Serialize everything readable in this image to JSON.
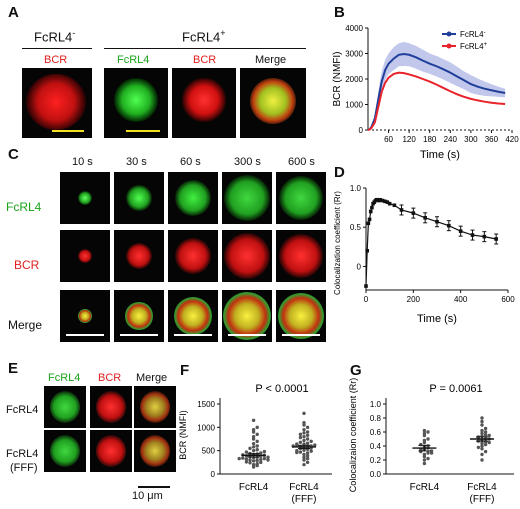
{
  "panels": {
    "A": {
      "letter": "A",
      "group_neg": "FcRL4",
      "group_neg_sup": "-",
      "group_pos": "FcRL4",
      "group_pos_sup": "+",
      "col_labels": [
        "BCR",
        "FcRL4",
        "BCR",
        "Merge"
      ]
    },
    "B": {
      "letter": "B"
    },
    "C": {
      "letter": "C",
      "times": [
        "10 s",
        "30 s",
        "60 s",
        "300 s",
        "600 s"
      ],
      "row_labels": [
        "FcRL4",
        "BCR",
        "Merge"
      ]
    },
    "D": {
      "letter": "D"
    },
    "E": {
      "letter": "E",
      "col_labels": [
        "FcRL4",
        "BCR",
        "Merge"
      ],
      "row_labels": [
        "FcRL4",
        "FcRL4",
        "(FFF)"
      ],
      "scalebar": "10 μm"
    },
    "F": {
      "letter": "F"
    },
    "G": {
      "letter": "G"
    }
  },
  "chart_data": [
    {
      "panel": "B",
      "type": "line",
      "xlabel": "Time (s)",
      "ylabel": "BCR (NMFI)",
      "xlim": [
        0,
        420
      ],
      "ylim": [
        0,
        4000
      ],
      "xticks": [
        60,
        120,
        180,
        240,
        300,
        360,
        420
      ],
      "yticks": [
        0,
        1000,
        2000,
        3000,
        4000
      ],
      "legend": "top-right",
      "series": [
        {
          "name": "FcRL4",
          "name_sup": "-",
          "color": "#1f3f9a",
          "x": [
            0,
            5,
            10,
            20,
            30,
            40,
            50,
            60,
            75,
            90,
            105,
            120,
            140,
            160,
            180,
            200,
            220,
            240,
            260,
            280,
            300,
            320,
            340,
            360,
            380,
            400
          ],
          "values": [
            0,
            30,
            120,
            450,
            1200,
            1900,
            2350,
            2600,
            2800,
            2950,
            2980,
            2950,
            2850,
            2720,
            2600,
            2500,
            2380,
            2250,
            2100,
            1950,
            1800,
            1700,
            1620,
            1560,
            1500,
            1450
          ],
          "band": [
            0,
            60,
            200,
            600,
            1500,
            2300,
            2750,
            3000,
            3250,
            3400,
            3450,
            3400,
            3300,
            3150,
            3000,
            2900,
            2780,
            2650,
            2480,
            2300,
            2150,
            2020,
            1900,
            1800,
            1700,
            1620
          ]
        },
        {
          "name": "FcRL4",
          "name_sup": "+",
          "color": "#e8232a",
          "x": [
            0,
            5,
            10,
            20,
            30,
            40,
            50,
            60,
            75,
            90,
            105,
            120,
            140,
            160,
            180,
            200,
            220,
            240,
            260,
            280,
            300,
            320,
            340,
            360,
            380,
            400
          ],
          "values": [
            0,
            20,
            80,
            300,
            900,
            1500,
            1850,
            2050,
            2200,
            2250,
            2230,
            2180,
            2100,
            2000,
            1900,
            1780,
            1650,
            1520,
            1400,
            1300,
            1220,
            1160,
            1110,
            1070,
            1040,
            1020
          ]
        }
      ]
    },
    {
      "panel": "D",
      "type": "line",
      "xlabel": "Time (s)",
      "ylabel": "Colocalization coefficient (Rr)",
      "xlim": [
        0,
        600
      ],
      "ylim": [
        0,
        1.0
      ],
      "xticks": [
        0,
        200,
        400,
        600
      ],
      "yticks": [
        0.0,
        0.5,
        1.0
      ],
      "yticklabels": [
        "0",
        "0.5",
        "1.0"
      ],
      "series": [
        {
          "color": "#111111",
          "x": [
            0,
            5,
            10,
            15,
            20,
            25,
            30,
            35,
            40,
            45,
            50,
            55,
            60,
            70,
            80,
            90,
            100,
            120,
            150,
            200,
            250,
            300,
            350,
            400,
            450,
            500,
            550
          ],
          "values": [
            -0.25,
            0.2,
            0.55,
            0.6,
            0.7,
            0.75,
            0.8,
            0.82,
            0.84,
            0.85,
            0.85,
            0.84,
            0.85,
            0.84,
            0.83,
            0.82,
            0.8,
            0.78,
            0.72,
            0.68,
            0.62,
            0.57,
            0.52,
            0.45,
            0.4,
            0.38,
            0.35
          ]
        }
      ]
    },
    {
      "panel": "F",
      "type": "scatter",
      "title": "P < 0.0001",
      "ylabel": "BCR (NMFI)",
      "ylim": [
        0,
        1500
      ],
      "yticks": [
        0,
        500,
        1000,
        1500
      ],
      "categories": [
        {
          "label": "FcRL4",
          "label2": "",
          "mean": 400,
          "sem": 35,
          "values": [
            150,
            180,
            200,
            220,
            240,
            250,
            260,
            280,
            290,
            300,
            310,
            320,
            330,
            340,
            350,
            360,
            370,
            380,
            390,
            400,
            410,
            420,
            430,
            440,
            450,
            470,
            480,
            500,
            520,
            550,
            580,
            600,
            650,
            700,
            750,
            800,
            850,
            900,
            950,
            1000,
            1150,
            300,
            330,
            360
          ]
        },
        {
          "label": "FcRL4",
          "label2": "(FFF)",
          "mean": 580,
          "sem": 35,
          "values": [
            200,
            250,
            300,
            330,
            360,
            390,
            420,
            450,
            470,
            490,
            510,
            530,
            550,
            570,
            580,
            590,
            600,
            610,
            620,
            640,
            660,
            680,
            700,
            720,
            750,
            780,
            800,
            830,
            850,
            880,
            900,
            950,
            1000,
            1050,
            1100,
            1300,
            560,
            600,
            640,
            500,
            460
          ]
        }
      ]
    },
    {
      "panel": "G",
      "type": "scatter",
      "title": "P = 0.0061",
      "ylabel": "Colocalizaion coefficient (Rr)",
      "ylim": [
        0,
        1.0
      ],
      "yticks": [
        0.0,
        0.2,
        0.4,
        0.6,
        0.8,
        1.0
      ],
      "yticklabels": [
        "0.0",
        "0.2",
        "0.4",
        "0.6",
        "0.8",
        "1.0"
      ],
      "categories": [
        {
          "label": "FcRL4",
          "label2": "",
          "mean": 0.37,
          "sem": 0.04,
          "values": [
            0.15,
            0.2,
            0.22,
            0.25,
            0.28,
            0.3,
            0.32,
            0.35,
            0.37,
            0.39,
            0.4,
            0.42,
            0.45,
            0.48,
            0.5,
            0.55,
            0.58,
            0.6,
            0.62,
            0.35,
            0.33,
            0.3
          ]
        },
        {
          "label": "FcRL4",
          "label2": "(FFF)",
          "mean": 0.5,
          "sem": 0.03,
          "values": [
            0.2,
            0.28,
            0.32,
            0.36,
            0.4,
            0.42,
            0.44,
            0.46,
            0.48,
            0.5,
            0.52,
            0.54,
            0.56,
            0.58,
            0.6,
            0.62,
            0.65,
            0.7,
            0.75,
            0.8,
            0.5,
            0.47,
            0.53,
            0.45,
            0.55,
            0.38
          ]
        }
      ]
    }
  ]
}
